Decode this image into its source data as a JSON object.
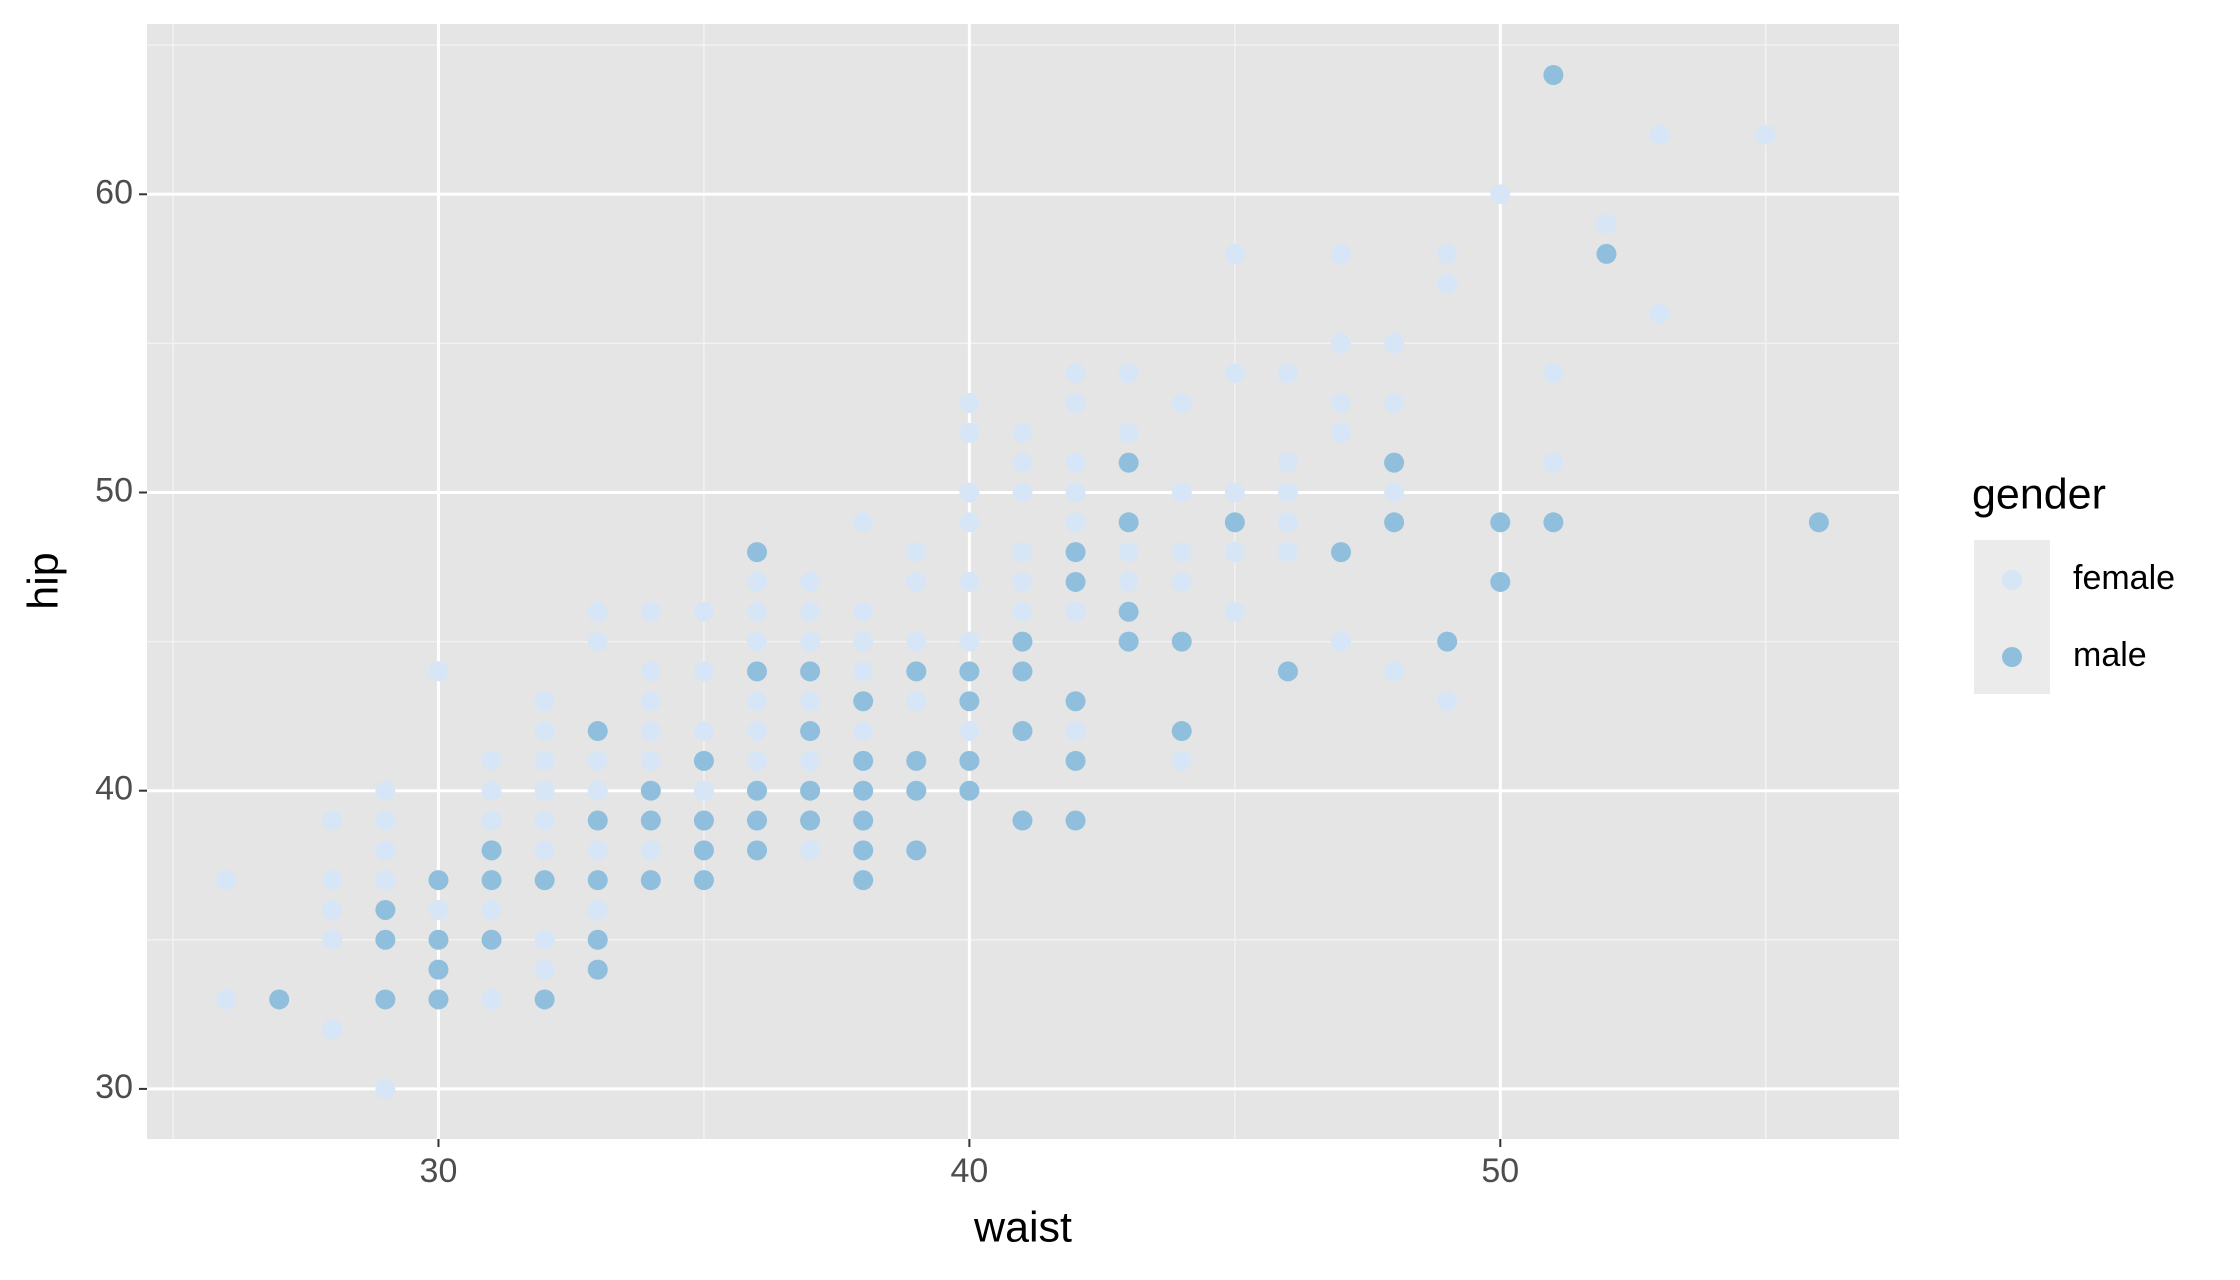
{
  "chart_data": {
    "type": "scatter",
    "x_label": "waist",
    "y_label": "hip",
    "xlim": [
      24.51,
      57.51
    ],
    "ylim": [
      28.32,
      65.71
    ],
    "xticks": [
      30,
      40,
      50
    ],
    "yticks": [
      30,
      40,
      50,
      60
    ],
    "minor_xticks": [
      25,
      35,
      45,
      55
    ],
    "minor_yticks": [
      35,
      45,
      55,
      65
    ],
    "grid": true,
    "legend_title": "gender",
    "legend_position": "right",
    "series": [
      {
        "name": "female",
        "color": "#d6e6f7",
        "x": [
          26,
          26,
          28,
          28,
          28,
          28,
          28,
          29,
          29,
          29,
          29,
          29,
          30,
          30,
          31,
          31,
          31,
          31,
          31,
          32,
          32,
          32,
          32,
          32,
          32,
          32,
          32,
          33,
          33,
          33,
          33,
          33,
          33,
          34,
          34,
          34,
          34,
          34,
          34,
          35,
          35,
          35,
          35,
          36,
          36,
          36,
          36,
          36,
          36,
          37,
          37,
          37,
          37,
          37,
          37,
          38,
          38,
          38,
          38,
          38,
          38,
          39,
          39,
          39,
          39,
          40,
          40,
          40,
          40,
          40,
          40,
          40,
          41,
          41,
          41,
          41,
          41,
          41,
          42,
          42,
          42,
          42,
          42,
          42,
          42,
          43,
          43,
          43,
          43,
          44,
          44,
          44,
          44,
          44,
          45,
          45,
          45,
          45,
          45,
          46,
          46,
          46,
          46,
          46,
          47,
          47,
          47,
          47,
          47,
          48,
          48,
          48,
          48,
          49,
          49,
          49,
          50,
          51,
          51,
          52,
          53,
          53,
          55
        ],
        "y": [
          37,
          33,
          39,
          37,
          36,
          35,
          32,
          40,
          39,
          38,
          37,
          30,
          44,
          36,
          41,
          40,
          39,
          36,
          33,
          43,
          42,
          41,
          40,
          39,
          38,
          35,
          34,
          46,
          45,
          41,
          40,
          38,
          36,
          46,
          44,
          43,
          42,
          41,
          38,
          46,
          44,
          42,
          40,
          47,
          46,
          45,
          43,
          42,
          41,
          47,
          46,
          45,
          43,
          41,
          38,
          49,
          46,
          45,
          44,
          42,
          41,
          48,
          47,
          45,
          43,
          53,
          52,
          50,
          49,
          47,
          45,
          42,
          52,
          51,
          50,
          48,
          47,
          46,
          54,
          53,
          51,
          50,
          49,
          46,
          42,
          54,
          52,
          48,
          47,
          53,
          50,
          48,
          47,
          41,
          58,
          54,
          50,
          48,
          46,
          54,
          51,
          50,
          49,
          48,
          58,
          55,
          53,
          52,
          45,
          55,
          53,
          50,
          44,
          58,
          57,
          43,
          60,
          54,
          51,
          59,
          62,
          56,
          62
        ]
      },
      {
        "name": "male",
        "color": "#8fbfdc",
        "x": [
          27,
          29,
          29,
          29,
          30,
          30,
          30,
          30,
          31,
          31,
          31,
          32,
          32,
          33,
          33,
          33,
          33,
          33,
          34,
          34,
          34,
          35,
          35,
          35,
          35,
          36,
          36,
          36,
          36,
          36,
          37,
          37,
          37,
          37,
          38,
          38,
          38,
          38,
          38,
          38,
          39,
          39,
          39,
          39,
          40,
          40,
          40,
          40,
          41,
          41,
          41,
          41,
          42,
          42,
          42,
          42,
          42,
          43,
          43,
          43,
          43,
          44,
          44,
          45,
          46,
          47,
          48,
          48,
          49,
          50,
          50,
          51,
          51,
          52,
          56
        ],
        "y": [
          33,
          36,
          35,
          33,
          37,
          35,
          34,
          33,
          38,
          37,
          35,
          37,
          33,
          42,
          39,
          37,
          35,
          34,
          40,
          39,
          37,
          41,
          39,
          38,
          37,
          48,
          44,
          40,
          39,
          38,
          44,
          42,
          40,
          39,
          43,
          41,
          40,
          39,
          38,
          37,
          44,
          41,
          40,
          38,
          44,
          43,
          41,
          40,
          45,
          44,
          42,
          39,
          48,
          47,
          43,
          41,
          39,
          51,
          49,
          46,
          45,
          45,
          42,
          49,
          44,
          48,
          51,
          49,
          45,
          49,
          47,
          64,
          49,
          58,
          49
        ]
      }
    ]
  }
}
